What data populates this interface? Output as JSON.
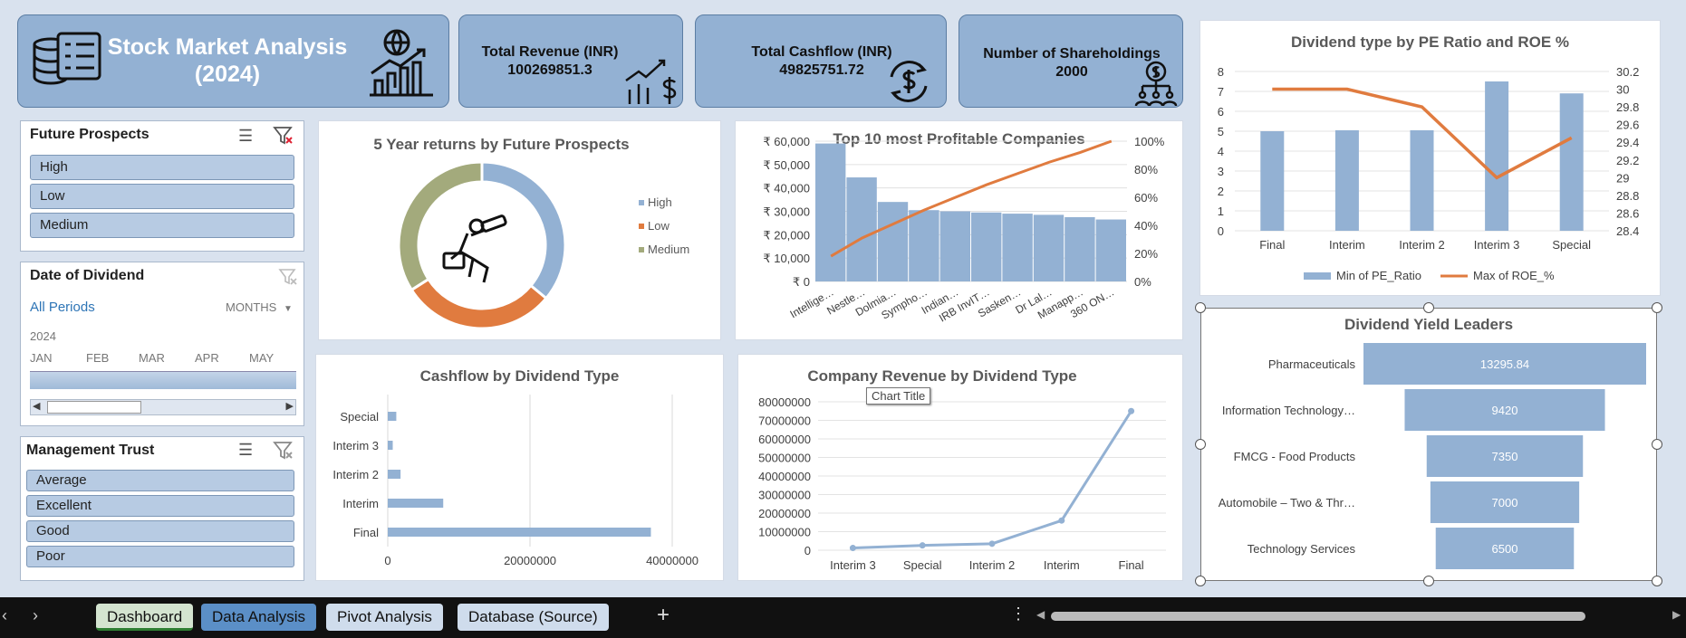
{
  "header": {
    "title_line1": "Stock Market Analysis",
    "title_line2": "(2024)"
  },
  "kpis": [
    {
      "label": "Total Revenue (INR)",
      "value": "100269851.3",
      "icon": "revenue-chart-dollar-icon"
    },
    {
      "label": "Total Cashflow (INR)",
      "value": "49825751.72",
      "icon": "cycle-dollar-icon"
    },
    {
      "label": "Number of Shareholdings",
      "value": "2000",
      "icon": "shareholders-icon"
    }
  ],
  "slicer_future": {
    "title": "Future Prospects",
    "items": [
      "High",
      "Low",
      "Medium"
    ]
  },
  "slicer_date": {
    "title": "Date of Dividend",
    "all_periods": "All Periods",
    "level": "MONTHS",
    "year": "2024",
    "months": [
      "JAN",
      "FEB",
      "MAR",
      "APR",
      "MAY"
    ]
  },
  "slicer_trust": {
    "title": "Management Trust",
    "items": [
      "Average",
      "Excellent",
      "Good",
      "Poor"
    ]
  },
  "donut": {
    "title": "5 Year returns by Future Prospects",
    "chart_data": {
      "type": "pie",
      "categories": [
        "High",
        "Low",
        "Medium"
      ],
      "values": [
        36,
        30,
        34
      ],
      "colors": [
        "#93b1d3",
        "#e07b3f",
        "#a3aa7c"
      ]
    }
  },
  "pareto": {
    "title": "Top 10 most Profitable Companies",
    "chart_data": {
      "type": "bar",
      "categories": [
        "Intellige…",
        "Nestle…",
        "Dolmia…",
        "Sympho…",
        "Indian…",
        "IRB InvIT…",
        "Sasken…",
        "Dr Lal…",
        "Manapp…",
        "360 ON…"
      ],
      "values": [
        59000,
        44500,
        34000,
        30500,
        30000,
        29500,
        29000,
        28500,
        27500,
        26500
      ],
      "cumulative_pct": [
        18,
        31,
        41,
        51,
        60,
        69,
        77,
        85,
        92,
        100
      ],
      "yticks": [
        "₹ 0",
        "₹ 10,000",
        "₹ 20,000",
        "₹ 30,000",
        "₹ 40,000",
        "₹ 50,000",
        "₹ 60,000"
      ],
      "y2ticks": [
        "0%",
        "20%",
        "40%",
        "60%",
        "80%",
        "100%"
      ],
      "ylim": [
        0,
        60000
      ]
    }
  },
  "combo": {
    "title": "Dividend type by PE Ratio and ROE %",
    "chart_data": {
      "type": "bar",
      "categories": [
        "Final",
        "Interim",
        "Interim 2",
        "Interim 3",
        "Special"
      ],
      "series": [
        {
          "name": "Min of PE_Ratio",
          "values": [
            5.0,
            5.05,
            5.05,
            7.5,
            6.9
          ]
        },
        {
          "name": "Max of ROE_%",
          "values": [
            30.0,
            30.0,
            29.8,
            29.0,
            29.45
          ]
        }
      ],
      "yticks": [
        "0",
        "1",
        "2",
        "3",
        "4",
        "5",
        "6",
        "7",
        "8"
      ],
      "y2ticks": [
        "28.4",
        "28.6",
        "28.8",
        "29",
        "29.2",
        "29.4",
        "29.6",
        "29.8",
        "30",
        "30.2"
      ],
      "ylim": [
        0,
        8
      ],
      "y2lim": [
        28.4,
        30.2
      ]
    }
  },
  "cashflow": {
    "title": "Cashflow by Dividend Type",
    "chart_data": {
      "type": "bar",
      "categories": [
        "Special",
        "Interim 3",
        "Interim 2",
        "Interim",
        "Final"
      ],
      "values": [
        1200000,
        700000,
        1800000,
        7800000,
        37000000
      ],
      "xticks": [
        "0",
        "20000000",
        "40000000"
      ],
      "xlim": [
        0,
        40000000
      ]
    }
  },
  "revenue": {
    "title": "Company Revenue by Dividend Type",
    "tooltip": "Chart Title",
    "chart_data": {
      "type": "line",
      "categories": [
        "Interim 3",
        "Special",
        "Interim 2",
        "Interim",
        "Final"
      ],
      "values": [
        1200000,
        2600000,
        3500000,
        16000000,
        75000000
      ],
      "yticks": [
        "0",
        "10000000",
        "20000000",
        "30000000",
        "40000000",
        "50000000",
        "60000000",
        "70000000",
        "80000000"
      ],
      "ylim": [
        0,
        80000000
      ]
    }
  },
  "funnel": {
    "title": "Dividend Yield Leaders",
    "chart_data": {
      "type": "bar",
      "categories": [
        "Pharmaceuticals",
        "Information Technology…",
        "FMCG  - Food Products",
        "Automobile – Two & Thr…",
        "Technology Services"
      ],
      "values": [
        13295.84,
        9420,
        7350,
        7000,
        6500
      ],
      "labels": [
        "13295.84",
        "9420",
        "7350",
        "7000",
        "6500"
      ]
    }
  },
  "tabs": [
    "Dashboard",
    "Data Analysis",
    "Pivot Analysis",
    "Database (Source)"
  ],
  "colors": {
    "bar": "#93b1d3",
    "line": "#e07b3f",
    "bg": "#d9e2ee"
  }
}
